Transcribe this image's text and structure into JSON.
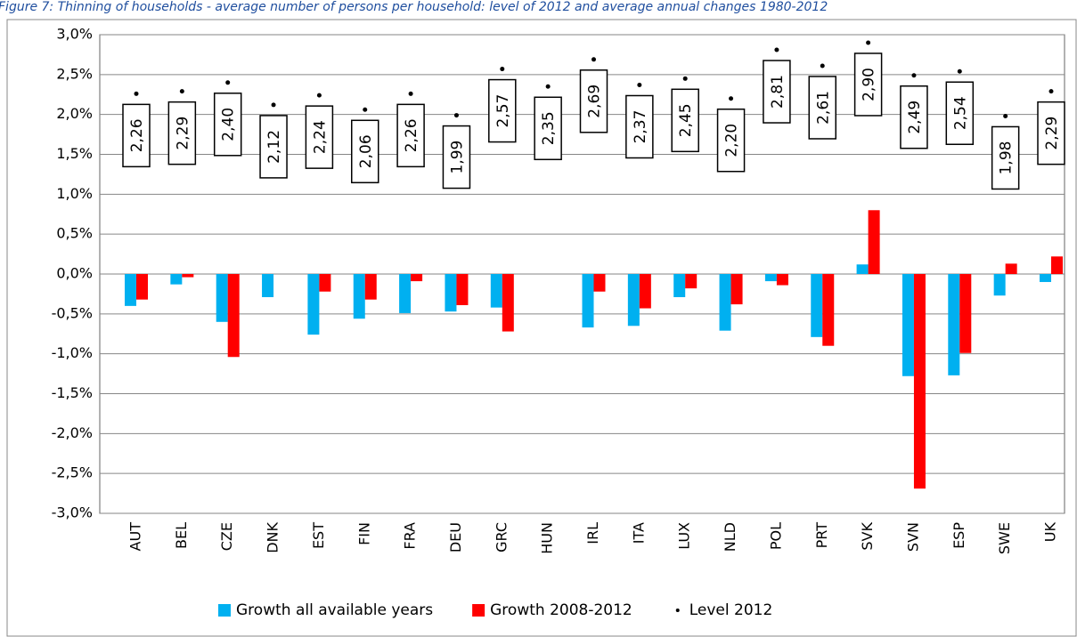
{
  "chart_data": {
    "type": "bar",
    "title": "Figure 7: Thinning of households - average number of persons per household: level of 2012 and average annual changes 1980-2012",
    "categories": [
      "AUT",
      "BEL",
      "CZE",
      "DNK",
      "EST",
      "FIN",
      "FRA",
      "DEU",
      "GRC",
      "HUN",
      "IRL",
      "ITA",
      "LUX",
      "NLD",
      "POL",
      "PRT",
      "SVK",
      "SVN",
      "ESP",
      "SWE",
      "UK"
    ],
    "series": [
      {
        "name": "Growth all available years",
        "color": "#00b0f0",
        "values": [
          -0.4,
          -0.13,
          -0.6,
          -0.29,
          -0.76,
          -0.56,
          -0.49,
          -0.47,
          -0.42,
          null,
          -0.67,
          -0.65,
          -0.29,
          -0.71,
          -0.09,
          -0.79,
          0.12,
          -1.28,
          -1.27,
          -0.27,
          -0.1
        ]
      },
      {
        "name": "Growth 2008-2012",
        "color": "#ff0000",
        "values": [
          -0.32,
          -0.04,
          -1.04,
          null,
          -0.22,
          -0.32,
          -0.09,
          -0.39,
          -0.72,
          null,
          -0.22,
          -0.43,
          -0.18,
          -0.38,
          -0.14,
          -0.9,
          0.8,
          -2.69,
          -0.99,
          0.13,
          0.22
        ]
      },
      {
        "name": "Level 2012",
        "color": "#000000",
        "type": "scatter",
        "values": [
          2.26,
          2.29,
          2.4,
          2.12,
          2.24,
          2.06,
          2.26,
          1.99,
          2.57,
          2.35,
          2.69,
          2.37,
          2.45,
          2.2,
          2.81,
          2.61,
          2.9,
          2.49,
          2.54,
          1.98,
          2.29
        ],
        "value_labels": [
          "2,26",
          "2,29",
          "2,40",
          "2,12",
          "2,24",
          "2,06",
          "2,26",
          "1,99",
          "2,57",
          "2,35",
          "2,69",
          "2,37",
          "2,45",
          "2,20",
          "2,81",
          "2,61",
          "2,90",
          "2,49",
          "2,54",
          "1,98",
          "2,29"
        ]
      }
    ],
    "ylim": [
      -3,
      3
    ],
    "yticks": [
      {
        "value": -3,
        "label": "-3,0%"
      },
      {
        "value": -2.5,
        "label": "-2,5%"
      },
      {
        "value": -2,
        "label": "-2,0%"
      },
      {
        "value": -1.5,
        "label": "-1,5%"
      },
      {
        "value": -1,
        "label": "-1,0%"
      },
      {
        "value": -0.5,
        "label": "-0,5%"
      },
      {
        "value": 0,
        "label": "0,0%"
      },
      {
        "value": 0.5,
        "label": "0,5%"
      },
      {
        "value": 1,
        "label": "1,0%"
      },
      {
        "value": 1.5,
        "label": "1,5%"
      },
      {
        "value": 2,
        "label": "2,0%"
      },
      {
        "value": 2.5,
        "label": "2,5%"
      },
      {
        "value": 3,
        "label": "3,0%"
      }
    ],
    "grid": true
  }
}
